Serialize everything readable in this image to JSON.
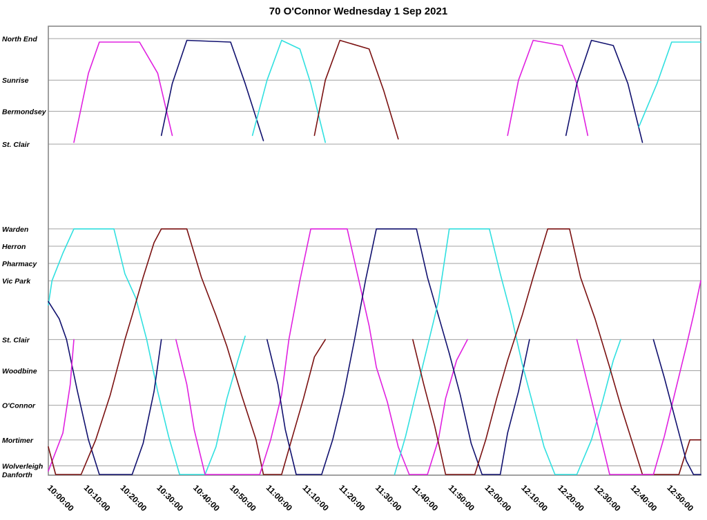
{
  "chart_data": {
    "type": "line",
    "title": "70 O'Connor Wednesday 1 Sep 2021",
    "xlabel": "",
    "ylabel": "",
    "x_range": [
      "10:00:00",
      "12:59:00"
    ],
    "x_ticks": [
      "10:00:00",
      "10:10:00",
      "10:20:00",
      "10:30:00",
      "10:40:00",
      "10:50:00",
      "11:00:00",
      "11:10:00",
      "11:20:00",
      "11:30:00",
      "11:40:00",
      "11:50:00",
      "12:00:00",
      "12:10:00",
      "12:20:00",
      "12:30:00",
      "12:40:00",
      "12:50:00"
    ],
    "stops": [
      {
        "name": "North End",
        "pos": 0
      },
      {
        "name": "Sunrise",
        "pos": 1.2
      },
      {
        "name": "Bermondsey",
        "pos": 2.1
      },
      {
        "name": "St. Clair",
        "pos": 3.05
      },
      {
        "name": "Warden",
        "pos": 5.5
      },
      {
        "name": "Herron",
        "pos": 6.0
      },
      {
        "name": "Pharmacy",
        "pos": 6.5
      },
      {
        "name": "Vic Park",
        "pos": 7.0
      },
      {
        "name": "St. Clair",
        "pos": 8.7
      },
      {
        "name": "Woodbine",
        "pos": 9.6
      },
      {
        "name": "O'Connor",
        "pos": 10.6
      },
      {
        "name": "Mortimer",
        "pos": 11.6
      },
      {
        "name": "Wolverleigh",
        "pos": 12.35
      },
      {
        "name": "Danforth",
        "pos": 12.6
      }
    ],
    "grid": true,
    "legend": "none",
    "colors": {
      "magenta": "#e020e0",
      "navy": "#10106e",
      "cyan": "#30e0e0",
      "maroon": "#7a1010"
    },
    "series": [
      {
        "color": "#e020e0",
        "points": [
          [
            "10:07",
            3.0
          ],
          [
            "10:11",
            1.0
          ],
          [
            "10:14",
            0.1
          ],
          [
            "10:25",
            0.1
          ],
          [
            "10:30",
            1.0
          ],
          [
            "10:34",
            2.8
          ]
        ]
      },
      {
        "color": "#10106e",
        "points": [
          [
            "10:31",
            2.8
          ],
          [
            "10:34",
            1.3
          ],
          [
            "10:38",
            0.05
          ],
          [
            "10:50",
            0.1
          ],
          [
            "10:54",
            1.3
          ],
          [
            "10:59",
            2.95
          ]
        ]
      },
      {
        "color": "#30e0e0",
        "points": [
          [
            "10:56",
            2.8
          ],
          [
            "11:00",
            1.2
          ],
          [
            "11:04",
            0.05
          ],
          [
            "11:09",
            0.3
          ],
          [
            "11:12",
            1.3
          ],
          [
            "11:16",
            3.0
          ]
        ]
      },
      {
        "color": "#7a1010",
        "points": [
          [
            "11:13",
            2.8
          ],
          [
            "11:16",
            1.2
          ],
          [
            "11:20",
            0.05
          ],
          [
            "11:28",
            0.3
          ],
          [
            "11:32",
            1.5
          ],
          [
            "11:36",
            2.9
          ]
        ]
      },
      {
        "color": "#e020e0",
        "points": [
          [
            "12:06",
            2.8
          ],
          [
            "12:09",
            1.2
          ],
          [
            "12:13",
            0.05
          ],
          [
            "12:21",
            0.2
          ],
          [
            "12:25",
            1.3
          ],
          [
            "12:28",
            2.8
          ]
        ]
      },
      {
        "color": "#10106e",
        "points": [
          [
            "12:22",
            2.8
          ],
          [
            "12:25",
            1.3
          ],
          [
            "12:29",
            0.05
          ],
          [
            "12:35",
            0.2
          ],
          [
            "12:39",
            1.3
          ],
          [
            "12:43",
            3.0
          ]
        ]
      },
      {
        "color": "#30e0e0",
        "points": [
          [
            "12:42",
            2.55
          ],
          [
            "12:47",
            1.3
          ],
          [
            "12:51",
            0.1
          ],
          [
            "12:59",
            0.1
          ]
        ]
      },
      {
        "color": "#30e0e0",
        "points": [
          [
            "10:00",
            7.7
          ],
          [
            "10:01",
            7.0
          ],
          [
            "10:04",
            6.2
          ],
          [
            "10:07",
            5.5
          ],
          [
            "10:18",
            5.5
          ],
          [
            "10:21",
            6.8
          ],
          [
            "10:24",
            7.5
          ],
          [
            "10:27",
            8.7
          ],
          [
            "10:30",
            10.2
          ],
          [
            "10:33",
            11.5
          ],
          [
            "10:36",
            12.6
          ],
          [
            "10:43",
            12.6
          ],
          [
            "10:46",
            11.8
          ],
          [
            "10:49",
            10.4
          ],
          [
            "10:52",
            9.3
          ],
          [
            "10:54",
            8.6
          ]
        ]
      },
      {
        "color": "#10106e",
        "points": [
          [
            "10:00",
            7.6
          ],
          [
            "10:03",
            8.1
          ],
          [
            "10:05",
            8.7
          ],
          [
            "10:08",
            10.2
          ],
          [
            "10:11",
            11.6
          ],
          [
            "10:14",
            12.6
          ],
          [
            "10:23",
            12.6
          ],
          [
            "10:26",
            11.7
          ],
          [
            "10:29",
            10.2
          ],
          [
            "10:31",
            8.7
          ]
        ]
      },
      {
        "color": "#e020e0",
        "points": [
          [
            "10:00",
            12.5
          ],
          [
            "10:04",
            11.4
          ],
          [
            "10:06",
            10.0
          ],
          [
            "10:07",
            8.7
          ]
        ]
      },
      {
        "color": "#7a1010",
        "points": [
          [
            "10:00",
            11.8
          ],
          [
            "10:02",
            12.6
          ],
          [
            "10:09",
            12.6
          ],
          [
            "10:13",
            11.6
          ],
          [
            "10:17",
            10.3
          ],
          [
            "10:21",
            8.7
          ],
          [
            "10:23",
            8.0
          ],
          [
            "10:26",
            6.9
          ],
          [
            "10:29",
            5.9
          ],
          [
            "10:31",
            5.5
          ],
          [
            "10:38",
            5.5
          ],
          [
            "10:42",
            6.9
          ],
          [
            "10:46",
            8.0
          ],
          [
            "10:49",
            8.9
          ],
          [
            "10:53",
            10.3
          ],
          [
            "10:57",
            11.6
          ],
          [
            "10:59",
            12.6
          ],
          [
            "11:04",
            12.6
          ],
          [
            "11:07",
            11.5
          ],
          [
            "11:10",
            10.4
          ],
          [
            "11:13",
            9.2
          ],
          [
            "11:16",
            8.7
          ]
        ]
      },
      {
        "color": "#e020e0",
        "points": [
          [
            "10:35",
            8.7
          ],
          [
            "10:38",
            10.0
          ],
          [
            "10:40",
            11.3
          ],
          [
            "10:43",
            12.6
          ],
          [
            "10:58",
            12.6
          ],
          [
            "11:01",
            11.6
          ],
          [
            "11:04",
            10.3
          ],
          [
            "11:06",
            8.7
          ],
          [
            "11:09",
            7.0
          ],
          [
            "11:12",
            5.5
          ],
          [
            "11:22",
            5.5
          ],
          [
            "11:25",
            6.9
          ],
          [
            "11:28",
            8.3
          ],
          [
            "11:30",
            9.5
          ],
          [
            "11:33",
            10.5
          ],
          [
            "11:36",
            11.8
          ],
          [
            "11:39",
            12.6
          ],
          [
            "11:44",
            12.6
          ],
          [
            "11:47",
            11.6
          ],
          [
            "11:49",
            10.4
          ],
          [
            "11:52",
            9.3
          ],
          [
            "11:55",
            8.7
          ]
        ]
      },
      {
        "color": "#10106e",
        "points": [
          [
            "11:00",
            8.7
          ],
          [
            "11:03",
            10.0
          ],
          [
            "11:05",
            11.3
          ],
          [
            "11:08",
            12.6
          ],
          [
            "11:15",
            12.6
          ],
          [
            "11:18",
            11.6
          ],
          [
            "11:21",
            10.3
          ],
          [
            "11:24",
            8.7
          ],
          [
            "11:27",
            7.0
          ],
          [
            "11:30",
            5.5
          ],
          [
            "11:41",
            5.5
          ],
          [
            "11:44",
            6.9
          ],
          [
            "11:47",
            8.0
          ],
          [
            "11:50",
            9.1
          ],
          [
            "11:53",
            10.3
          ],
          [
            "11:56",
            11.7
          ],
          [
            "11:59",
            12.6
          ],
          [
            "12:04",
            12.6
          ],
          [
            "12:06",
            11.4
          ],
          [
            "12:09",
            10.2
          ],
          [
            "12:12",
            8.7
          ]
        ]
      },
      {
        "color": "#30e0e0",
        "points": [
          [
            "11:35",
            12.6
          ],
          [
            "11:38",
            11.5
          ],
          [
            "11:41",
            10.2
          ],
          [
            "11:44",
            8.9
          ],
          [
            "11:47",
            7.6
          ],
          [
            "11:50",
            5.5
          ],
          [
            "12:01",
            5.5
          ],
          [
            "12:04",
            6.8
          ],
          [
            "12:07",
            8.0
          ],
          [
            "12:10",
            9.4
          ],
          [
            "12:13",
            10.6
          ],
          [
            "12:16",
            11.8
          ],
          [
            "12:19",
            12.6
          ],
          [
            "12:25",
            12.6
          ],
          [
            "12:29",
            11.6
          ],
          [
            "12:32",
            10.5
          ],
          [
            "12:35",
            9.3
          ],
          [
            "12:37",
            8.7
          ]
        ]
      },
      {
        "color": "#7a1010",
        "points": [
          [
            "11:40",
            8.7
          ],
          [
            "11:43",
            10.0
          ],
          [
            "11:46",
            11.2
          ],
          [
            "11:49",
            12.6
          ],
          [
            "11:57",
            12.6
          ],
          [
            "12:00",
            11.6
          ],
          [
            "12:03",
            10.4
          ],
          [
            "12:06",
            9.3
          ],
          [
            "12:10",
            8.0
          ],
          [
            "12:13",
            6.9
          ],
          [
            "12:17",
            5.5
          ],
          [
            "12:23",
            5.5
          ],
          [
            "12:26",
            6.9
          ],
          [
            "12:30",
            8.1
          ],
          [
            "12:34",
            9.5
          ],
          [
            "12:37",
            10.6
          ],
          [
            "12:40",
            11.6
          ],
          [
            "12:43",
            12.6
          ],
          [
            "12:53",
            12.6
          ],
          [
            "12:56",
            11.6
          ],
          [
            "12:59",
            11.6
          ]
        ]
      },
      {
        "color": "#e020e0",
        "points": [
          [
            "12:25",
            8.7
          ],
          [
            "12:28",
            10.0
          ],
          [
            "12:31",
            11.3
          ],
          [
            "12:34",
            12.6
          ],
          [
            "12:46",
            12.6
          ],
          [
            "12:49",
            11.5
          ],
          [
            "12:52",
            10.2
          ],
          [
            "12:55",
            8.9
          ],
          [
            "12:57",
            8.0
          ],
          [
            "12:59",
            7.0
          ]
        ]
      },
      {
        "color": "#10106e",
        "points": [
          [
            "12:46",
            8.7
          ],
          [
            "12:49",
            9.8
          ],
          [
            "12:52",
            11.0
          ],
          [
            "12:55",
            12.2
          ],
          [
            "12:57",
            12.6
          ],
          [
            "12:59",
            12.6
          ]
        ]
      }
    ]
  }
}
